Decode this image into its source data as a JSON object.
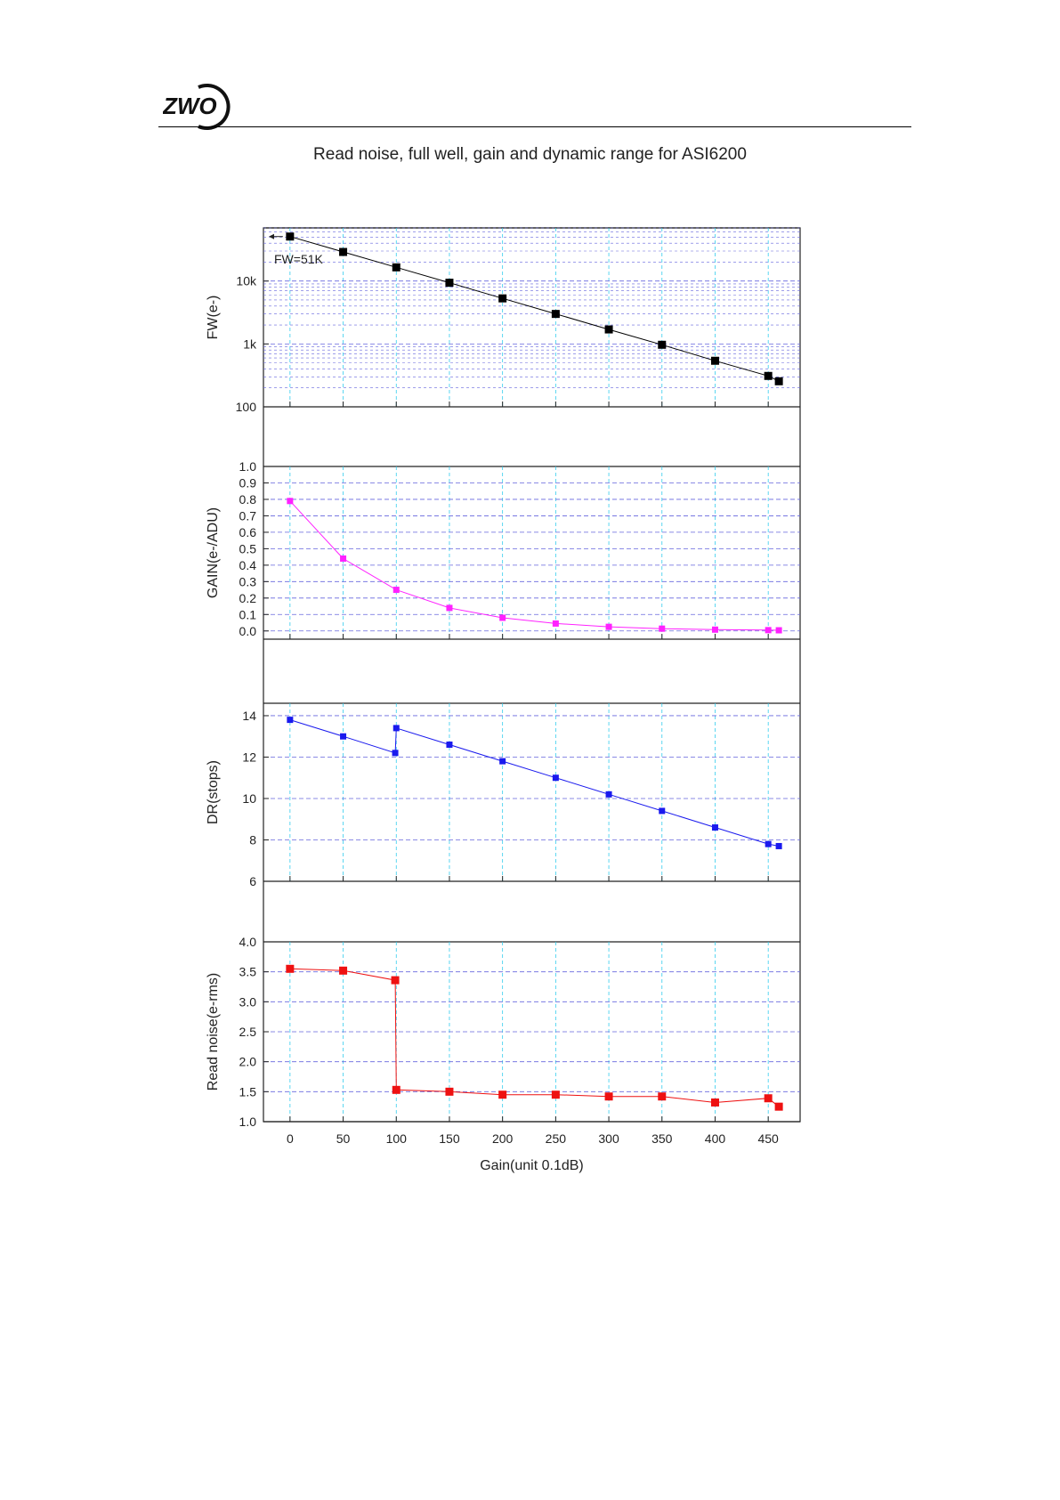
{
  "header": {
    "logo_text": "ZWO"
  },
  "chart_data": {
    "type": "scatter",
    "title": "Read noise, full well, gain and dynamic range for ASI6200",
    "xlabel": "Gain(unit 0.1dB)",
    "xlim": [
      -25,
      480
    ],
    "x_ticks": [
      "0",
      "50",
      "100",
      "150",
      "200",
      "250",
      "300",
      "350",
      "400",
      "450"
    ],
    "grid": true,
    "panels": [
      {
        "id": "fw",
        "ylabel": "FW(e-)",
        "yscale": "log",
        "ylim": [
          100,
          70000
        ],
        "y_ticks": [
          "100",
          "1k",
          "10k"
        ],
        "color": "#000000",
        "annotation": "FW=51K",
        "series": [
          {
            "x": [
              0,
              50,
              100,
              150,
              200,
              250,
              300,
              350,
              400,
              450,
              460
            ],
            "y": [
              51000,
              29000,
              16500,
              9400,
              5300,
              3000,
              1700,
              970,
              540,
              310,
              255
            ]
          }
        ]
      },
      {
        "id": "gain",
        "ylabel": "GAIN(e-/ADU)",
        "yscale": "linear",
        "ylim": [
          -0.05,
          1.0
        ],
        "y_ticks": [
          "0.0",
          "0.1",
          "0.2",
          "0.3",
          "0.4",
          "0.5",
          "0.6",
          "0.7",
          "0.8",
          "0.9",
          "1.0"
        ],
        "color": "#ff22ff",
        "series": [
          {
            "x": [
              0,
              50,
              100,
              150,
              200,
              250,
              300,
              350,
              400,
              450,
              460
            ],
            "y": [
              0.79,
              0.44,
              0.25,
              0.14,
              0.08,
              0.045,
              0.025,
              0.014,
              0.008,
              0.005,
              0.004
            ]
          }
        ]
      },
      {
        "id": "dr",
        "ylabel": "DR(stops)",
        "yscale": "linear",
        "ylim": [
          6,
          14.6
        ],
        "y_ticks": [
          "6",
          "8",
          "10",
          "12",
          "14"
        ],
        "color": "#1a1aee",
        "series": [
          {
            "x": [
              0,
              50,
              99,
              100,
              150,
              200,
              250,
              300,
              350,
              400,
              450,
              460
            ],
            "y": [
              13.8,
              13.0,
              12.2,
              13.4,
              12.6,
              11.8,
              11.0,
              10.2,
              9.4,
              8.6,
              7.8,
              7.7
            ]
          }
        ]
      },
      {
        "id": "rn",
        "ylabel": "Read noise(e-rms)",
        "yscale": "linear",
        "ylim": [
          1.0,
          4.0
        ],
        "y_ticks": [
          "1.0",
          "1.5",
          "2.0",
          "2.5",
          "3.0",
          "3.5",
          "4.0"
        ],
        "color": "#ee1111",
        "series": [
          {
            "x": [
              0,
              50,
              99,
              100,
              150,
              200,
              250,
              300,
              350,
              400,
              450,
              460
            ],
            "y": [
              3.55,
              3.52,
              3.36,
              1.53,
              1.5,
              1.45,
              1.45,
              1.42,
              1.42,
              1.32,
              1.39,
              1.25
            ]
          }
        ]
      }
    ]
  }
}
